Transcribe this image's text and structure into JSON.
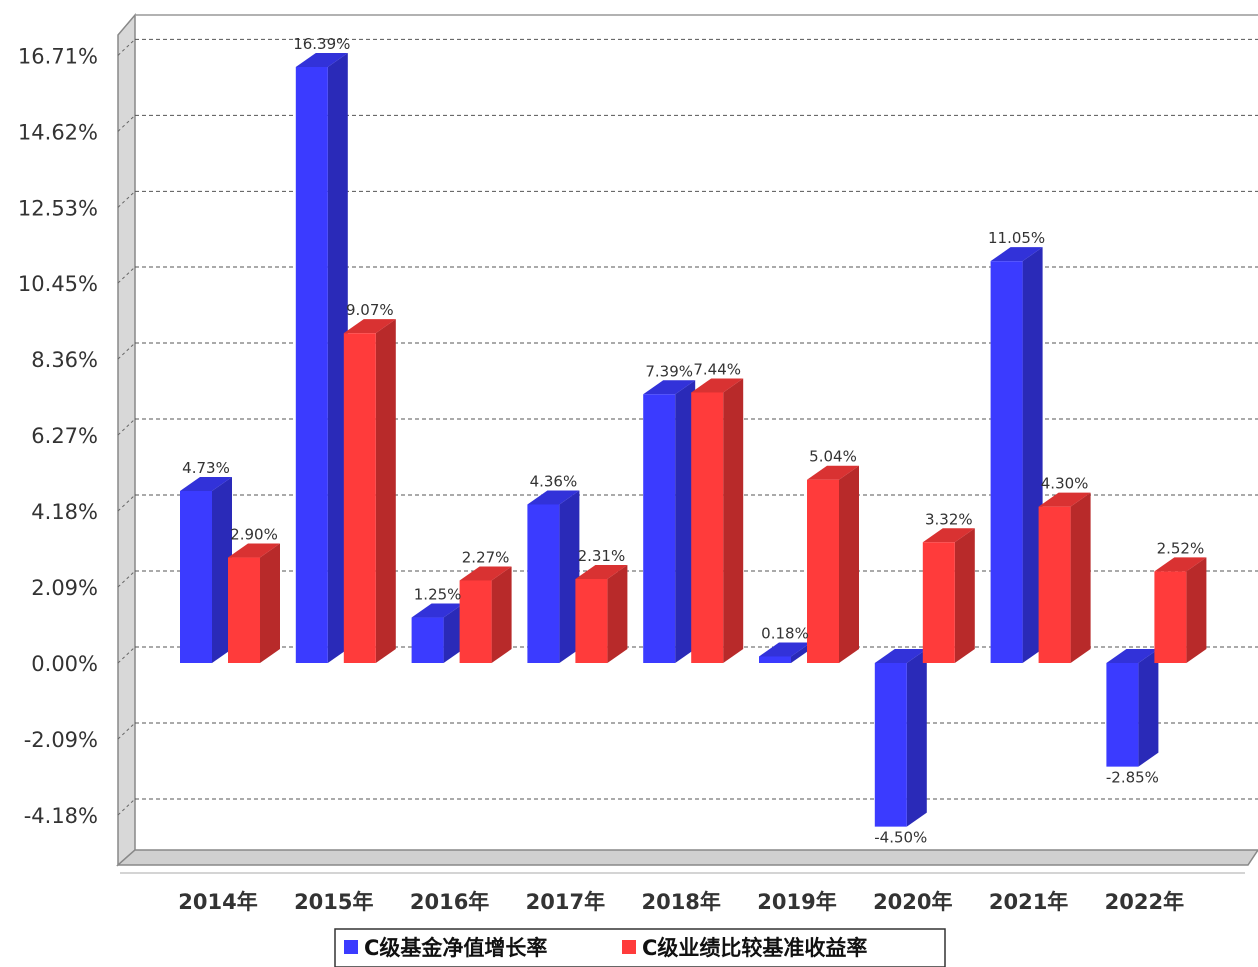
{
  "chart_data": {
    "type": "bar",
    "categories": [
      "2014年",
      "2015年",
      "2016年",
      "2017年",
      "2018年",
      "2019年",
      "2020年",
      "2021年",
      "2022年"
    ],
    "series": [
      {
        "name": "C级基金净值增长率",
        "color": "#3b3bff",
        "values": [
          4.73,
          16.39,
          1.25,
          4.36,
          7.39,
          0.18,
          -4.5,
          11.05,
          -2.85
        ],
        "labels": [
          "4.73%",
          "16.39%",
          "1.25%",
          "4.36%",
          "7.39%",
          "0.18%",
          "-4.50%",
          "11.05%",
          "-2.85%"
        ]
      },
      {
        "name": "C级业绩比较基准收益率",
        "color": "#ff3b3b",
        "values": [
          2.9,
          9.07,
          2.27,
          2.31,
          7.44,
          5.04,
          3.32,
          4.3,
          2.52
        ],
        "labels": [
          "2.90%",
          "9.07%",
          "2.27%",
          "2.31%",
          "7.44%",
          "5.04%",
          "3.32%",
          "4.30%",
          "2.52%"
        ]
      }
    ],
    "yticks": [
      16.71,
      14.62,
      12.53,
      10.45,
      8.36,
      6.27,
      4.18,
      2.09,
      0.0,
      -2.09,
      -4.18
    ],
    "ytick_labels": [
      "16.71%",
      "14.62%",
      "12.53%",
      "10.45%",
      "8.36%",
      "6.27%",
      "4.18%",
      "2.09%",
      "0.00%",
      "-2.09%",
      "-4.18%"
    ],
    "ylim": [
      -5.3,
      17.4
    ],
    "grid": true,
    "legend_position": "bottom"
  }
}
